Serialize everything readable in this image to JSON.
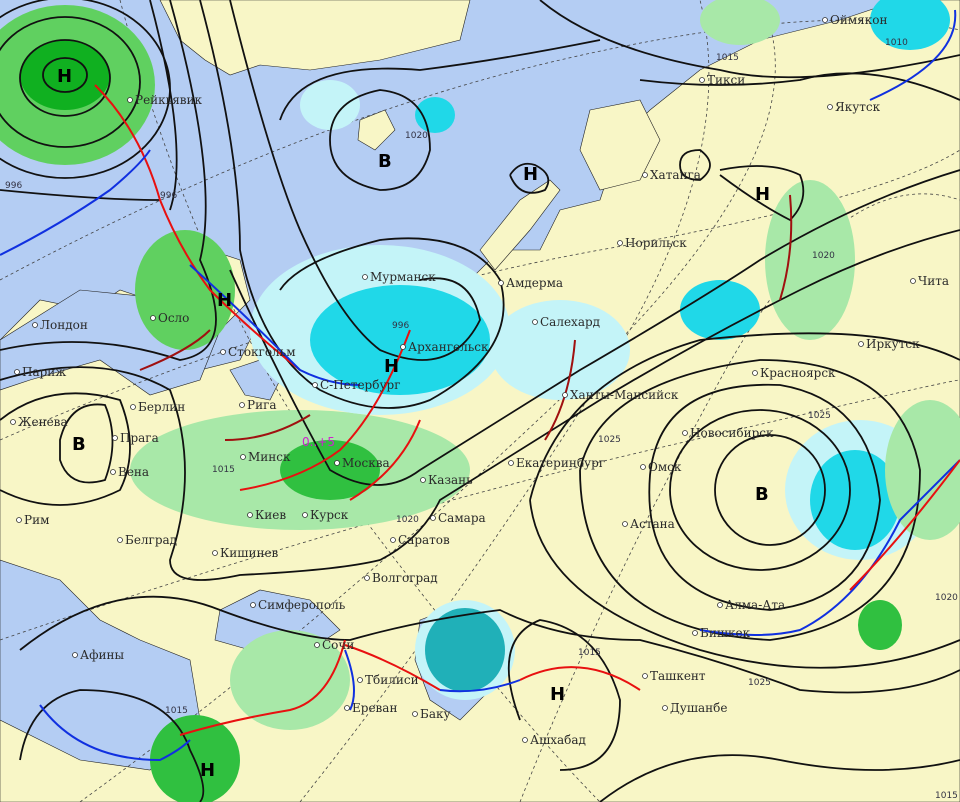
{
  "colors": {
    "water": "#b4cdf3",
    "land": "#f8f6c6",
    "precip_light": "#a8e8a8",
    "precip_heavy": "#10b020",
    "snow_light": "#c4f4f8",
    "snow_heavy": "#20d8e8",
    "isobar": "#111111",
    "warm_front": "#e81010",
    "cold_front": "#1030e0",
    "occluded_front": "#a01010",
    "temperature_label": "#d020d0"
  },
  "pressure_centers": [
    {
      "type": "low",
      "label": "Н"
    },
    {
      "type": "high",
      "label": "В"
    },
    {
      "type": "low",
      "label": "Н"
    },
    {
      "type": "low",
      "label": "Н"
    },
    {
      "type": "low",
      "label": "Н"
    },
    {
      "type": "high",
      "label": "В"
    },
    {
      "type": "low",
      "label": "Н"
    },
    {
      "type": "high",
      "label": "В"
    },
    {
      "type": "low",
      "label": "Н"
    },
    {
      "type": "low",
      "label": "Н"
    }
  ],
  "isobar_labels": [
    "996",
    "996",
    "996",
    "1020",
    "1015",
    "1020",
    "1025",
    "1025",
    "1015",
    "1025",
    "1015",
    "1020",
    "1020",
    "1010",
    "1015",
    "1015"
  ],
  "temperature_label": "0..+5",
  "cities": [
    "Рейкьявик",
    "Лондон",
    "Париж",
    "Женева",
    "Рим",
    "Берлин",
    "Прага",
    "Вена",
    "Белград",
    "Кишинев",
    "Симферополь",
    "Сочи",
    "Тбилиси",
    "Ереван",
    "Баку",
    "Ашхабад",
    "Душанбе",
    "Ташкент",
    "Бишкек",
    "Алма-Ата",
    "Астана",
    "Омск",
    "Новосибирск",
    "Екатеринбург",
    "Ханты-Мансийск",
    "Салехард",
    "Амдерма",
    "Норильск",
    "Хатанга",
    "Тикси",
    "Якутск",
    "Оймякон",
    "Чита",
    "Иркутск",
    "Красноярск",
    "Мурманск",
    "Архангельск",
    "С-Петербург",
    "Москва",
    "Стокгольм",
    "Рига",
    "Минск",
    "Киев",
    "Курск",
    "Казань",
    "Самара",
    "Саратов",
    "Волгоград",
    "Осло",
    "Афины"
  ]
}
